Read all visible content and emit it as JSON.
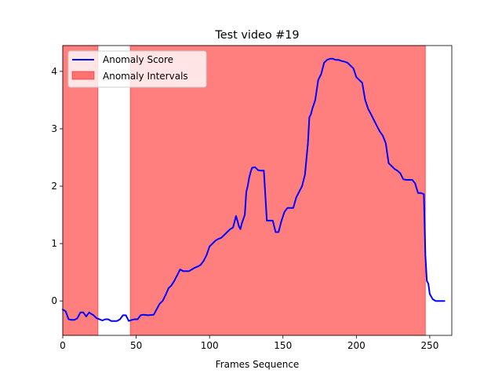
{
  "chart_data": {
    "type": "line",
    "title": "Test video #19",
    "xlabel": "Frames Sequence",
    "ylabel": "",
    "xlim": [
      0,
      265
    ],
    "ylim": [
      -0.6,
      4.45
    ],
    "xticks": [
      0,
      50,
      100,
      150,
      200,
      250
    ],
    "yticks": [
      0,
      1,
      2,
      3,
      4
    ],
    "legend": {
      "position": "top-left",
      "entries": [
        {
          "label": "Anomaly Score",
          "kind": "line",
          "color": "#0000ff"
        },
        {
          "label": "Anomaly Intervals",
          "kind": "patch",
          "color": "#ff0000"
        }
      ]
    },
    "anomaly_intervals": [
      [
        0,
        24
      ],
      [
        46,
        247
      ]
    ],
    "series": [
      {
        "name": "Anomaly Score",
        "color": "#0000ff",
        "x": [
          0,
          2,
          4,
          6,
          8,
          10,
          12,
          14,
          16,
          18,
          19,
          21,
          23,
          25,
          27,
          29,
          31,
          33,
          35,
          37,
          39,
          41,
          43,
          45,
          47,
          49,
          51,
          53,
          55,
          58,
          62,
          66,
          68,
          70,
          72,
          74,
          76,
          78,
          80,
          82,
          84,
          86,
          88,
          90,
          92,
          94,
          96,
          98,
          100,
          102,
          104,
          106,
          108,
          110,
          112,
          114,
          116,
          118,
          119,
          120,
          121,
          122,
          124,
          125,
          126,
          127,
          128,
          129,
          131,
          133,
          135,
          137,
          139,
          141,
          143,
          145,
          147,
          149,
          151,
          153,
          155,
          157,
          159,
          161,
          163,
          165,
          167,
          168,
          169,
          170,
          172,
          174,
          175,
          176,
          178,
          180,
          182,
          184,
          186,
          188,
          190,
          192,
          194,
          196,
          198,
          200,
          202,
          204,
          206,
          208,
          210,
          212,
          214,
          216,
          218,
          220,
          222,
          224,
          226,
          228,
          230,
          232,
          234,
          236,
          238,
          240,
          242,
          244,
          246,
          247,
          248,
          249,
          250,
          252,
          254,
          256,
          258,
          260
        ],
        "y": [
          -0.15,
          -0.18,
          -0.32,
          -0.33,
          -0.33,
          -0.3,
          -0.2,
          -0.2,
          -0.27,
          -0.2,
          -0.22,
          -0.25,
          -0.3,
          -0.32,
          -0.34,
          -0.32,
          -0.32,
          -0.35,
          -0.35,
          -0.35,
          -0.32,
          -0.25,
          -0.25,
          -0.35,
          -0.33,
          -0.32,
          -0.32,
          -0.25,
          -0.24,
          -0.25,
          -0.24,
          -0.05,
          0.0,
          0.1,
          0.22,
          0.27,
          0.35,
          0.45,
          0.55,
          0.52,
          0.52,
          0.52,
          0.55,
          0.58,
          0.6,
          0.63,
          0.7,
          0.8,
          0.95,
          1.0,
          1.05,
          1.08,
          1.1,
          1.15,
          1.2,
          1.25,
          1.28,
          1.48,
          1.4,
          1.3,
          1.25,
          1.35,
          1.5,
          1.9,
          2.0,
          2.15,
          2.25,
          2.32,
          2.33,
          2.28,
          2.27,
          2.27,
          1.4,
          1.4,
          1.4,
          1.2,
          1.2,
          1.4,
          1.55,
          1.62,
          1.62,
          1.62,
          1.8,
          1.9,
          2.0,
          2.2,
          2.75,
          3.2,
          3.25,
          3.35,
          3.5,
          3.85,
          3.9,
          3.95,
          4.15,
          4.2,
          4.22,
          4.22,
          4.2,
          4.2,
          4.18,
          4.17,
          4.15,
          4.1,
          4.05,
          3.9,
          3.85,
          3.8,
          3.5,
          3.35,
          3.25,
          3.15,
          3.05,
          2.95,
          2.88,
          2.75,
          2.4,
          2.35,
          2.3,
          2.27,
          2.22,
          2.12,
          2.11,
          2.11,
          2.11,
          2.05,
          1.88,
          1.88,
          1.86,
          0.8,
          0.35,
          0.3,
          0.12,
          0.03,
          0.0,
          0.0,
          0.0,
          0.0
        ]
      }
    ]
  }
}
